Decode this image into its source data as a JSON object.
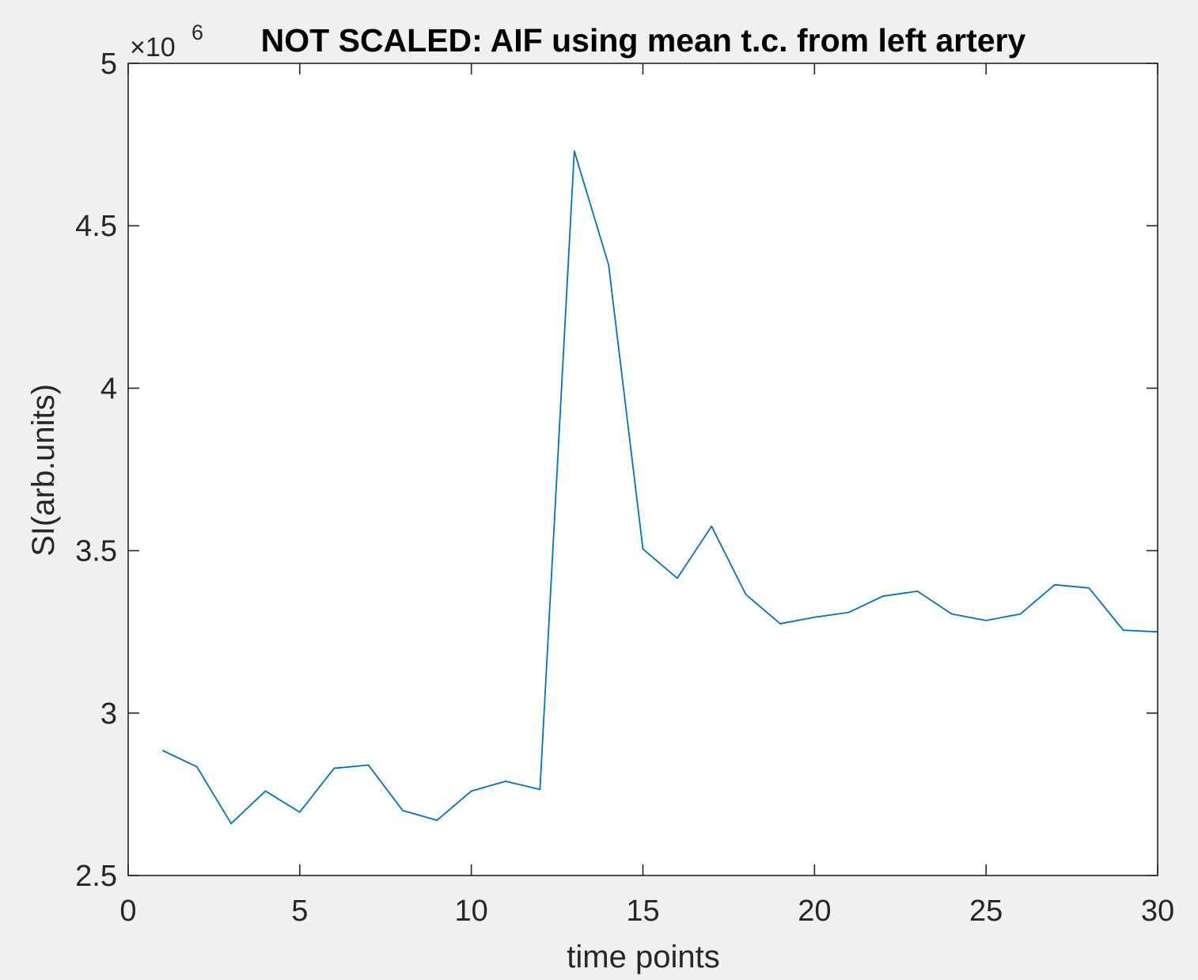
{
  "chart_data": {
    "type": "line",
    "title": "NOT SCALED: AIF using mean t.c. from left artery",
    "xlabel": "time points",
    "ylabel": "SI(arb.units)",
    "y_exponent_base": "×10",
    "y_exponent_power": "6",
    "xlim": [
      0,
      30
    ],
    "ylim": [
      2.5,
      5
    ],
    "x_ticks": [
      0,
      5,
      10,
      15,
      20,
      25,
      30
    ],
    "x_tick_labels": [
      "0",
      "5",
      "10",
      "15",
      "20",
      "25",
      "30"
    ],
    "y_ticks": [
      2.5,
      3,
      3.5,
      4,
      4.5,
      5
    ],
    "y_tick_labels": [
      "2.5",
      "3",
      "3.5",
      "4",
      "4.5",
      "5"
    ],
    "grid": false,
    "series": [
      {
        "color": "#0072bd",
        "x": [
          1,
          2,
          3,
          4,
          5,
          6,
          7,
          8,
          9,
          10,
          11,
          12,
          13,
          14,
          15,
          16,
          17,
          18,
          19,
          20,
          21,
          22,
          23,
          24,
          25,
          26,
          27,
          28,
          29,
          30
        ],
        "y": [
          2.885,
          2.835,
          2.66,
          2.76,
          2.695,
          2.83,
          2.84,
          2.7,
          2.67,
          2.76,
          2.79,
          2.765,
          4.73,
          4.38,
          3.505,
          3.415,
          3.575,
          3.365,
          3.275,
          3.295,
          3.31,
          3.36,
          3.375,
          3.305,
          3.285,
          3.305,
          3.395,
          3.385,
          3.255,
          3.25
        ]
      }
    ]
  }
}
